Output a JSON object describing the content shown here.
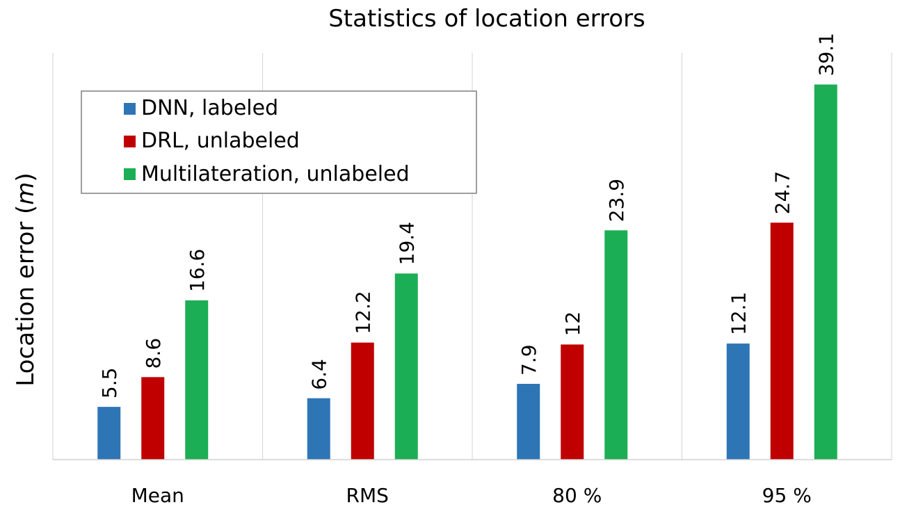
{
  "chart_data": {
    "type": "bar",
    "title": "Statistics of location errors",
    "xlabel": "",
    "ylabel": "Location error (",
    "ylabel_unit": "m",
    "ylabel_close": ")",
    "categories": [
      "Mean",
      "RMS",
      "80 %",
      "95 %"
    ],
    "series": [
      {
        "name": "DNN, labeled",
        "color": "#2e75b6",
        "values": [
          5.5,
          6.4,
          7.9,
          12.1
        ],
        "labels": [
          "5.5",
          "6.4",
          "7.9",
          "12.1"
        ]
      },
      {
        "name": "DRL, unlabeled",
        "color": "#c00000",
        "values": [
          8.6,
          12.2,
          12,
          24.7
        ],
        "labels": [
          "8.6",
          "12.2",
          "12",
          "24.7"
        ]
      },
      {
        "name": "Multilateration, unlabeled",
        "color": "#1cae54",
        "values": [
          16.6,
          19.4,
          23.9,
          39.1
        ],
        "labels": [
          "16.6",
          "19.4",
          "23.9",
          "39.1"
        ]
      }
    ],
    "ylim": [
      0,
      42.4
    ],
    "grid": "vertical category separators",
    "legend": "top-left"
  }
}
